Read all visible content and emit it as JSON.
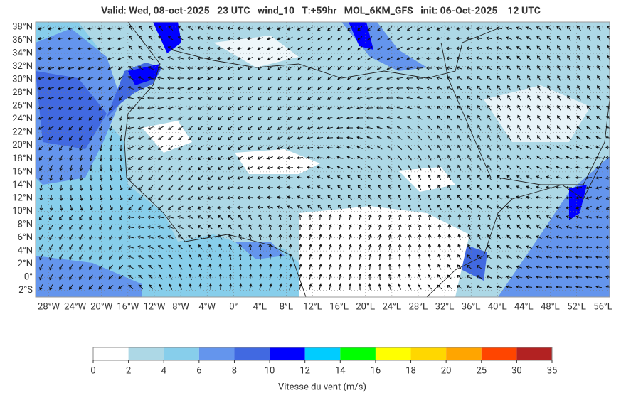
{
  "title": "Valid: Wed, 08-oct-2025   23 UTC   wind_10   T:+59hr   MOL_6KM_GFS   init: 06-Oct-2025    12 UTC",
  "map": {
    "xlim": [
      -30,
      57
    ],
    "ylim": [
      -3,
      38.75
    ],
    "lat_ticks": [
      {
        "value": 38,
        "label": "38°N"
      },
      {
        "value": 36,
        "label": "36°N"
      },
      {
        "value": 34,
        "label": "34°N"
      },
      {
        "value": 32,
        "label": "32°N"
      },
      {
        "value": 30,
        "label": "30°N"
      },
      {
        "value": 28,
        "label": "28°N"
      },
      {
        "value": 26,
        "label": "26°N"
      },
      {
        "value": 24,
        "label": "24°N"
      },
      {
        "value": 22,
        "label": "22°N"
      },
      {
        "value": 20,
        "label": "20°N"
      },
      {
        "value": 18,
        "label": "18°N"
      },
      {
        "value": 16,
        "label": "16°N"
      },
      {
        "value": 14,
        "label": "14°N"
      },
      {
        "value": 12,
        "label": "12°N"
      },
      {
        "value": 10,
        "label": "10°N"
      },
      {
        "value": 8,
        "label": "8°N"
      },
      {
        "value": 6,
        "label": "6°N"
      },
      {
        "value": 4,
        "label": "4°N"
      },
      {
        "value": 2,
        "label": "2°N"
      },
      {
        "value": 0,
        "label": "0°"
      },
      {
        "value": -2,
        "label": "2°S"
      }
    ],
    "lon_ticks": [
      {
        "value": -28,
        "label": "28°W"
      },
      {
        "value": -24,
        "label": "24°W"
      },
      {
        "value": -20,
        "label": "20°W"
      },
      {
        "value": -16,
        "label": "16°W"
      },
      {
        "value": -12,
        "label": "12°W"
      },
      {
        "value": -8,
        "label": "8°W"
      },
      {
        "value": -4,
        "label": "4°W"
      },
      {
        "value": 0,
        "label": "0°"
      },
      {
        "value": 4,
        "label": "4°E"
      },
      {
        "value": 8,
        "label": "8°E"
      },
      {
        "value": 12,
        "label": "12°E"
      },
      {
        "value": 16,
        "label": "16°E"
      },
      {
        "value": 20,
        "label": "20°E"
      },
      {
        "value": 24,
        "label": "24°E"
      },
      {
        "value": 28,
        "label": "28°E"
      },
      {
        "value": 32,
        "label": "32°E"
      },
      {
        "value": 36,
        "label": "36°E"
      },
      {
        "value": 40,
        "label": "40°E"
      },
      {
        "value": 44,
        "label": "44°E"
      },
      {
        "value": 48,
        "label": "48°E"
      },
      {
        "value": 52,
        "label": "52°E"
      },
      {
        "value": 56,
        "label": "56°E"
      }
    ]
  },
  "colorbar": {
    "label": "Vitesse du vent (m/s)",
    "ticks": [
      0,
      2,
      4,
      6,
      8,
      10,
      12,
      14,
      16,
      18,
      20,
      25,
      30,
      35
    ],
    "colors": [
      "#ffffff",
      "#add8e6",
      "#87ceeb",
      "#6495ed",
      "#4169e1",
      "#0000ff",
      "#00ccff",
      "#00ff00",
      "#ffff00",
      "#ffd700",
      "#ffa500",
      "#ff4500",
      "#b22222"
    ]
  }
}
